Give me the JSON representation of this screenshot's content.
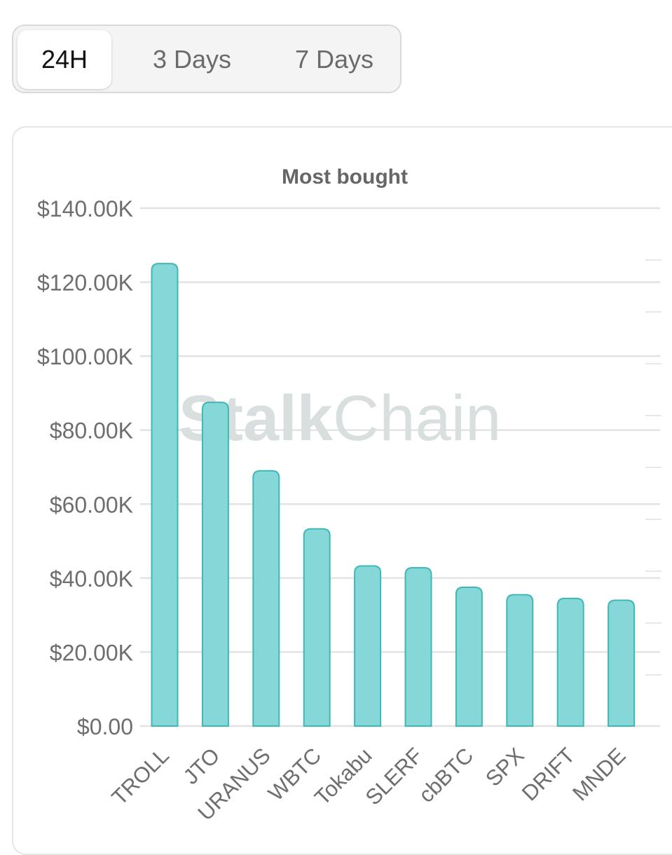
{
  "tabs": [
    {
      "label": "24H",
      "active": true
    },
    {
      "label": "3 Days",
      "active": false
    },
    {
      "label": "7 Days",
      "active": false
    }
  ],
  "watermark": "StalkChain",
  "chart_data": {
    "type": "bar",
    "title": "Most bought",
    "categories": [
      "TROLL",
      "JTO",
      "URANUS",
      "WBTC",
      "Tokabu",
      "SLERF",
      "cbBTC",
      "SPX",
      "DRIFT",
      "MNDE"
    ],
    "values": [
      125000,
      87500,
      69000,
      53300,
      43300,
      42800,
      37500,
      35500,
      34500,
      34000
    ],
    "yticks": [
      0,
      20000,
      40000,
      60000,
      80000,
      100000,
      120000,
      140000
    ],
    "ytick_labels": [
      "$0.00",
      "$20.00K",
      "$40.00K",
      "$60.00K",
      "$80.00K",
      "$100.00K",
      "$120.00K",
      "$140.00K"
    ],
    "ylim": [
      0,
      140000
    ],
    "xlabel": "",
    "ylabel": "",
    "grid": true,
    "colors": {
      "bar_fill": "#86d7d8",
      "bar_stroke": "#3fb8b5",
      "grid": "#e3e3e3",
      "tick_text": "#6e6e6e",
      "title_text": "#666666",
      "watermark": "#d9dede"
    }
  }
}
